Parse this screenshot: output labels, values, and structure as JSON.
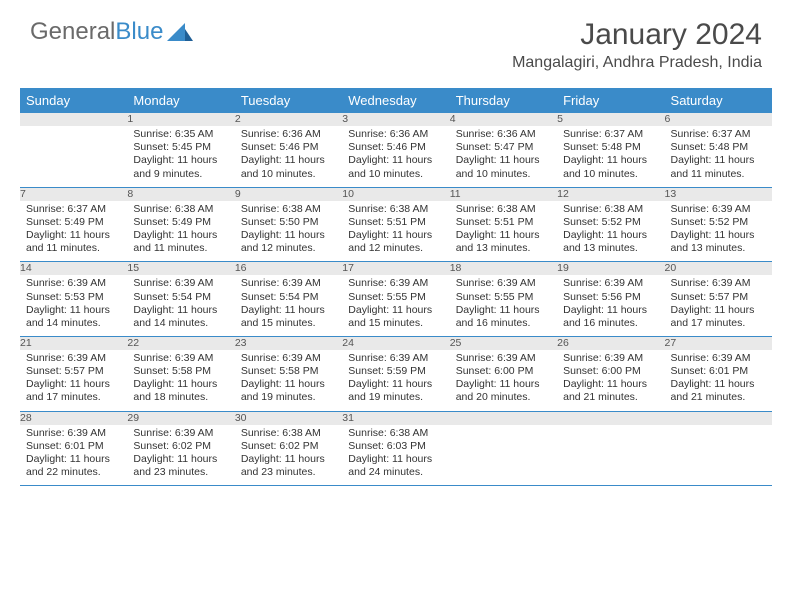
{
  "logo": {
    "text1": "General",
    "text2": "Blue"
  },
  "title": "January 2024",
  "location": "Mangalagiri, Andhra Pradesh, India",
  "colors": {
    "header_bg": "#3a8bc9",
    "header_text": "#ffffff",
    "daynum_bg": "#e9e9e9",
    "border": "#3a8bc9",
    "body_bg": "#ffffff",
    "text": "#333333"
  },
  "weekdays": [
    "Sunday",
    "Monday",
    "Tuesday",
    "Wednesday",
    "Thursday",
    "Friday",
    "Saturday"
  ],
  "weeks": [
    {
      "nums": [
        "",
        "1",
        "2",
        "3",
        "4",
        "5",
        "6"
      ],
      "cells": [
        null,
        {
          "sunrise": "Sunrise: 6:35 AM",
          "sunset": "Sunset: 5:45 PM",
          "daylight": "Daylight: 11 hours and 9 minutes."
        },
        {
          "sunrise": "Sunrise: 6:36 AM",
          "sunset": "Sunset: 5:46 PM",
          "daylight": "Daylight: 11 hours and 10 minutes."
        },
        {
          "sunrise": "Sunrise: 6:36 AM",
          "sunset": "Sunset: 5:46 PM",
          "daylight": "Daylight: 11 hours and 10 minutes."
        },
        {
          "sunrise": "Sunrise: 6:36 AM",
          "sunset": "Sunset: 5:47 PM",
          "daylight": "Daylight: 11 hours and 10 minutes."
        },
        {
          "sunrise": "Sunrise: 6:37 AM",
          "sunset": "Sunset: 5:48 PM",
          "daylight": "Daylight: 11 hours and 10 minutes."
        },
        {
          "sunrise": "Sunrise: 6:37 AM",
          "sunset": "Sunset: 5:48 PM",
          "daylight": "Daylight: 11 hours and 11 minutes."
        }
      ]
    },
    {
      "nums": [
        "7",
        "8",
        "9",
        "10",
        "11",
        "12",
        "13"
      ],
      "cells": [
        {
          "sunrise": "Sunrise: 6:37 AM",
          "sunset": "Sunset: 5:49 PM",
          "daylight": "Daylight: 11 hours and 11 minutes."
        },
        {
          "sunrise": "Sunrise: 6:38 AM",
          "sunset": "Sunset: 5:49 PM",
          "daylight": "Daylight: 11 hours and 11 minutes."
        },
        {
          "sunrise": "Sunrise: 6:38 AM",
          "sunset": "Sunset: 5:50 PM",
          "daylight": "Daylight: 11 hours and 12 minutes."
        },
        {
          "sunrise": "Sunrise: 6:38 AM",
          "sunset": "Sunset: 5:51 PM",
          "daylight": "Daylight: 11 hours and 12 minutes."
        },
        {
          "sunrise": "Sunrise: 6:38 AM",
          "sunset": "Sunset: 5:51 PM",
          "daylight": "Daylight: 11 hours and 13 minutes."
        },
        {
          "sunrise": "Sunrise: 6:38 AM",
          "sunset": "Sunset: 5:52 PM",
          "daylight": "Daylight: 11 hours and 13 minutes."
        },
        {
          "sunrise": "Sunrise: 6:39 AM",
          "sunset": "Sunset: 5:52 PM",
          "daylight": "Daylight: 11 hours and 13 minutes."
        }
      ]
    },
    {
      "nums": [
        "14",
        "15",
        "16",
        "17",
        "18",
        "19",
        "20"
      ],
      "cells": [
        {
          "sunrise": "Sunrise: 6:39 AM",
          "sunset": "Sunset: 5:53 PM",
          "daylight": "Daylight: 11 hours and 14 minutes."
        },
        {
          "sunrise": "Sunrise: 6:39 AM",
          "sunset": "Sunset: 5:54 PM",
          "daylight": "Daylight: 11 hours and 14 minutes."
        },
        {
          "sunrise": "Sunrise: 6:39 AM",
          "sunset": "Sunset: 5:54 PM",
          "daylight": "Daylight: 11 hours and 15 minutes."
        },
        {
          "sunrise": "Sunrise: 6:39 AM",
          "sunset": "Sunset: 5:55 PM",
          "daylight": "Daylight: 11 hours and 15 minutes."
        },
        {
          "sunrise": "Sunrise: 6:39 AM",
          "sunset": "Sunset: 5:55 PM",
          "daylight": "Daylight: 11 hours and 16 minutes."
        },
        {
          "sunrise": "Sunrise: 6:39 AM",
          "sunset": "Sunset: 5:56 PM",
          "daylight": "Daylight: 11 hours and 16 minutes."
        },
        {
          "sunrise": "Sunrise: 6:39 AM",
          "sunset": "Sunset: 5:57 PM",
          "daylight": "Daylight: 11 hours and 17 minutes."
        }
      ]
    },
    {
      "nums": [
        "21",
        "22",
        "23",
        "24",
        "25",
        "26",
        "27"
      ],
      "cells": [
        {
          "sunrise": "Sunrise: 6:39 AM",
          "sunset": "Sunset: 5:57 PM",
          "daylight": "Daylight: 11 hours and 17 minutes."
        },
        {
          "sunrise": "Sunrise: 6:39 AM",
          "sunset": "Sunset: 5:58 PM",
          "daylight": "Daylight: 11 hours and 18 minutes."
        },
        {
          "sunrise": "Sunrise: 6:39 AM",
          "sunset": "Sunset: 5:58 PM",
          "daylight": "Daylight: 11 hours and 19 minutes."
        },
        {
          "sunrise": "Sunrise: 6:39 AM",
          "sunset": "Sunset: 5:59 PM",
          "daylight": "Daylight: 11 hours and 19 minutes."
        },
        {
          "sunrise": "Sunrise: 6:39 AM",
          "sunset": "Sunset: 6:00 PM",
          "daylight": "Daylight: 11 hours and 20 minutes."
        },
        {
          "sunrise": "Sunrise: 6:39 AM",
          "sunset": "Sunset: 6:00 PM",
          "daylight": "Daylight: 11 hours and 21 minutes."
        },
        {
          "sunrise": "Sunrise: 6:39 AM",
          "sunset": "Sunset: 6:01 PM",
          "daylight": "Daylight: 11 hours and 21 minutes."
        }
      ]
    },
    {
      "nums": [
        "28",
        "29",
        "30",
        "31",
        "",
        "",
        ""
      ],
      "cells": [
        {
          "sunrise": "Sunrise: 6:39 AM",
          "sunset": "Sunset: 6:01 PM",
          "daylight": "Daylight: 11 hours and 22 minutes."
        },
        {
          "sunrise": "Sunrise: 6:39 AM",
          "sunset": "Sunset: 6:02 PM",
          "daylight": "Daylight: 11 hours and 23 minutes."
        },
        {
          "sunrise": "Sunrise: 6:38 AM",
          "sunset": "Sunset: 6:02 PM",
          "daylight": "Daylight: 11 hours and 23 minutes."
        },
        {
          "sunrise": "Sunrise: 6:38 AM",
          "sunset": "Sunset: 6:03 PM",
          "daylight": "Daylight: 11 hours and 24 minutes."
        },
        null,
        null,
        null
      ]
    }
  ]
}
